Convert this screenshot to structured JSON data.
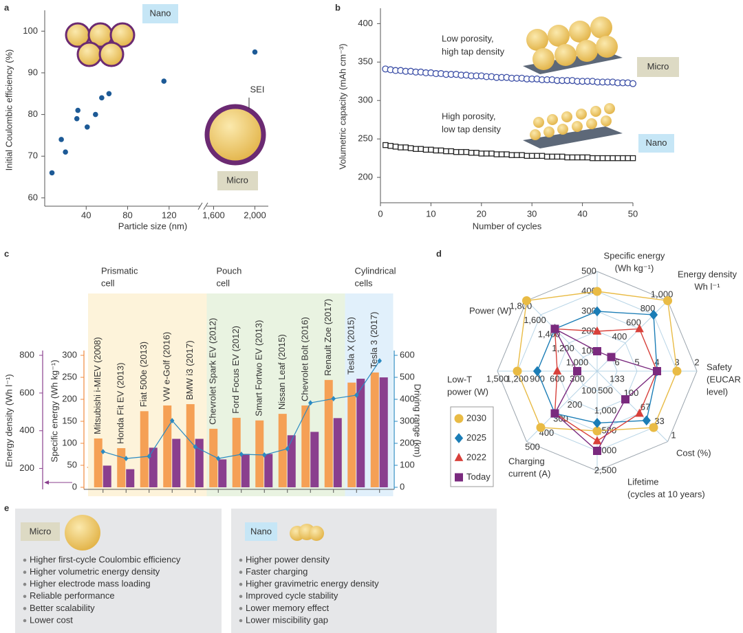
{
  "chart_data": [
    {
      "panel": "a",
      "type": "scatter",
      "xlabel": "Particle size (nm)",
      "ylabel": "Initial Coulombic efficiency (%)",
      "x": [
        7,
        16,
        20,
        31,
        32,
        41,
        49,
        55,
        62,
        115,
        2000
      ],
      "values": [
        66,
        74,
        71,
        79,
        81,
        77,
        80,
        84,
        85,
        88,
        95
      ],
      "color": "#1d5a96",
      "xlim": [
        0,
        2130
      ],
      "xbreak": [
        150,
        1530
      ],
      "xticks": [
        40,
        80,
        120,
        {
          "value": 1600,
          "label": "1,600"
        },
        {
          "value": 2000,
          "label": "2,000"
        }
      ],
      "ylim": [
        58,
        105
      ],
      "yticks": [
        60,
        70,
        80,
        90,
        100
      ],
      "annotations": [
        "Nano",
        "SEI",
        "Micro"
      ]
    },
    {
      "panel": "b",
      "type": "scatter",
      "xlabel": "Number of cycles",
      "ylabel": "Volumetric capacity (mAh cm⁻³)",
      "x": [
        1,
        2,
        3,
        4,
        5,
        6,
        7,
        8,
        9,
        10,
        11,
        12,
        13,
        14,
        15,
        16,
        17,
        18,
        19,
        20,
        21,
        22,
        23,
        24,
        25,
        26,
        27,
        28,
        29,
        30,
        31,
        32,
        33,
        34,
        35,
        36,
        37,
        38,
        39,
        40,
        41,
        42,
        43,
        44,
        45,
        46,
        47,
        48,
        49,
        50
      ],
      "series": [
        {
          "name": "Micro",
          "color": "#3b4ea6",
          "marker": "circle",
          "values": [
            341,
            340,
            339,
            339,
            338,
            338,
            337,
            337,
            336,
            336,
            335,
            335,
            334,
            334,
            334,
            333,
            333,
            332,
            332,
            332,
            331,
            331,
            330,
            330,
            330,
            329,
            329,
            329,
            328,
            328,
            328,
            327,
            327,
            327,
            326,
            326,
            326,
            326,
            325,
            325,
            325,
            325,
            324,
            324,
            324,
            324,
            323,
            323,
            323,
            322
          ]
        },
        {
          "name": "Nano",
          "color": "#222222",
          "marker": "square",
          "values": [
            242,
            241,
            240,
            239,
            239,
            238,
            237,
            237,
            236,
            236,
            235,
            235,
            234,
            234,
            233,
            233,
            233,
            232,
            232,
            231,
            231,
            231,
            230,
            230,
            230,
            229,
            229,
            229,
            228,
            228,
            228,
            228,
            227,
            227,
            227,
            227,
            226,
            226,
            226,
            226,
            226,
            225,
            225,
            225,
            225,
            225,
            225,
            225,
            225,
            225
          ]
        }
      ],
      "xlim": [
        0,
        50
      ],
      "xticks": [
        0,
        10,
        20,
        30,
        40,
        50
      ],
      "ylim": [
        167,
        420
      ],
      "yticks": [
        200,
        250,
        300,
        350,
        400
      ],
      "annotations": [
        [
          "Low porosity,",
          "high tap density"
        ],
        [
          "High porosity,",
          "low tap density"
        ]
      ]
    },
    {
      "panel": "c",
      "type": "bar",
      "categories": [
        "Mitsubishi i-MIEV (2008)",
        "Honda Fit EV (2013)",
        "Fiat 500e (2013)",
        "VW e-Golf (2016)",
        "BMW i3 (2017)",
        "Chevrolet Spark EV (2012)",
        "Ford Focus EV (2012)",
        "Smart Fortwo EV (2013)",
        "Nissan Leaf (2015)",
        "Chevrolet Bolt (2016)",
        "Renault Zoe (2017)",
        "Tesla X (2015)",
        "Tesla 3 (2017)"
      ],
      "groups": [
        {
          "label": [
            "Prismatic",
            "cell"
          ],
          "span": [
            0,
            4
          ],
          "color": "#fdf3da"
        },
        {
          "label": [
            "Pouch",
            "cell"
          ],
          "span": [
            5,
            10
          ],
          "color": "#e9f3e1"
        },
        {
          "label": [
            "Cylindrical",
            "cells"
          ],
          "span": [
            11,
            12
          ],
          "color": "#e1f0fb"
        }
      ],
      "axes": [
        {
          "label": "Energy density (Wh l⁻¹)",
          "lim": [
            100,
            800
          ],
          "ticks": [
            200,
            400,
            600,
            800
          ],
          "color": "#8a3f8e"
        },
        {
          "label": "Specific energy (Wh kg⁻¹)",
          "lim": [
            0,
            300
          ],
          "ticks": [
            0,
            50,
            100,
            150,
            200,
            250,
            300
          ],
          "color": "#f08a3c"
        },
        {
          "label": "Driving range (km)",
          "lim": [
            0,
            600
          ],
          "ticks": [
            0,
            100,
            200,
            300,
            400,
            500,
            600
          ],
          "color": "#2a8ac2"
        }
      ],
      "series": [
        {
          "kind": "bar",
          "axis": 1,
          "color": "#f5a055",
          "values": [
            111,
            89,
            173,
            186,
            189,
            133,
            158,
            152,
            167,
            186,
            244,
            238,
            261
          ]
        },
        {
          "kind": "bar",
          "axis": 0,
          "color": "#8a3f8e",
          "values": [
            215,
            196,
            310,
            357,
            357,
            248,
            277,
            277,
            376,
            394,
            467,
            676,
            683
          ]
        },
        {
          "kind": "line",
          "axis": 2,
          "color": "#2a8ac2",
          "values": [
            162,
            131,
            141,
            303,
            184,
            131,
            150,
            147,
            175,
            384,
            403,
            419,
            575
          ]
        }
      ]
    },
    {
      "panel": "d",
      "type": "radar",
      "axes": [
        {
          "label": [
            "Specific energy",
            "(Wh kg⁻¹)"
          ],
          "ticks": [
            500,
            400,
            300,
            200,
            100
          ]
        },
        {
          "label": [
            "Energy density",
            "Wh l⁻¹"
          ],
          "ticks": [
            {
              "value": 1000,
              "label": "1,000"
            },
            800,
            600,
            400
          ]
        },
        {
          "label": [
            "Safety",
            "(EUCAR",
            "level)"
          ],
          "ticks": [
            2,
            3,
            4,
            5,
            6
          ]
        },
        {
          "label": [
            "Cost (%)"
          ],
          "ticks": [
            1,
            33,
            67,
            100,
            133
          ]
        },
        {
          "label": [
            "Lifetime",
            "(cycles at 10 years)"
          ],
          "ticks": [
            {
              "value": 2500,
              "label": "2,500"
            },
            {
              "value": 2000,
              "label": "2,000"
            },
            {
              "value": 1500,
              "label": "1,500"
            },
            {
              "value": 1000,
              "label": "1,000"
            },
            500
          ]
        },
        {
          "label": [
            "Charging",
            "current (A)"
          ],
          "ticks": [
            500,
            400,
            300,
            200,
            100
          ]
        },
        {
          "label": [
            "Low-T",
            "power (W)"
          ],
          "ticks": [
            {
              "value": 1500,
              "label": "1,500"
            },
            {
              "value": 1200,
              "label": "1,200"
            },
            900,
            600,
            300
          ]
        },
        {
          "label": [
            "Power (W)"
          ],
          "ticks": [
            {
              "value": 1800,
              "label": "1,800"
            },
            {
              "value": 1600,
              "label": "1,600"
            },
            {
              "value": 1400,
              "label": "1,400"
            },
            {
              "value": 1200,
              "label": "1,200"
            },
            {
              "value": 1000,
              "label": "1,000"
            }
          ]
        }
      ],
      "series": [
        {
          "name": "2030",
          "color": "#e9bb45",
          "marker": "circle",
          "values": [
            400,
            1000,
            3,
            33,
            1500,
            400,
            1200,
            1800
          ]
        },
        {
          "name": "2025",
          "color": "#1b7db6",
          "marker": "diamond",
          "values": [
            300,
            800,
            4,
            50,
            1300,
            300,
            900,
            1400
          ]
        },
        {
          "name": "2022",
          "color": "#d8403a",
          "marker": "triangle",
          "values": [
            200,
            600,
            4,
            67,
            1750,
            300,
            600,
            1400
          ]
        },
        {
          "name": "Today",
          "color": "#7a2a7e",
          "marker": "square",
          "values": [
            100,
            200,
            4,
            100,
            2000,
            300,
            300,
            1400
          ]
        }
      ]
    }
  ],
  "comparison": {
    "panel": "e",
    "groups": [
      {
        "name": "Micro",
        "items": [
          "Higher first-cycle Coulombic efficiency",
          "Higher volumetric energy density",
          "Higher electrode mass loading",
          "Reliable performance",
          "Better scalability",
          "Lower cost"
        ]
      },
      {
        "name": "Nano",
        "items": [
          "Higher power density",
          "Faster charging",
          "Higher gravimetric energy density",
          "Improved cycle stability",
          "Lower memory effect",
          "Lower miscibility gap"
        ]
      }
    ]
  }
}
